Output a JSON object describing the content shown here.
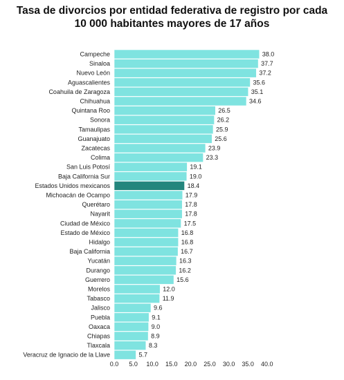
{
  "chart_data": {
    "type": "bar",
    "orientation": "horizontal",
    "title_lines": [
      "Tasa de divorcios por entidad federativa de registro por cada",
      "10 000 habitantes mayores de 17 años"
    ],
    "xlabel": "",
    "ylabel": "",
    "xlim": [
      0,
      40
    ],
    "x_ticks": [
      "0.0",
      "5.0",
      "10.0",
      "15.0",
      "20.0",
      "25.0",
      "30.0",
      "35.0",
      "40.0"
    ],
    "grid": false,
    "legend": "none",
    "categories": [
      "Campeche",
      "Sinaloa",
      "Nuevo León",
      "Aguascalientes",
      "Coahuila de Zaragoza",
      "Chihuahua",
      "Quintana Roo",
      "Sonora",
      "Tamaulipas",
      "Guanajuato",
      "Zacatecas",
      "Colima",
      "San Luis Potosí",
      "Baja California Sur",
      "Estados Unidos mexicanos",
      "Michoacán de Ocampo",
      "Querétaro",
      "Nayarit",
      "Ciudad de México",
      "Estado de México",
      "Hidalgo",
      "Baja California",
      "Yucatán",
      "Durango",
      "Guerrero",
      "Morelos",
      "Tabasco",
      "Jalisco",
      "Puebla",
      "Oaxaca",
      "Chiapas",
      "Tlaxcala",
      "Veracruz de Ignacio de la Llave"
    ],
    "values": [
      38.0,
      37.7,
      37.2,
      35.6,
      35.1,
      34.6,
      26.5,
      26.2,
      25.9,
      25.6,
      23.9,
      23.3,
      19.1,
      19.0,
      18.4,
      17.9,
      17.8,
      17.8,
      17.5,
      16.8,
      16.8,
      16.7,
      16.3,
      16.2,
      15.6,
      12.0,
      11.9,
      9.6,
      9.1,
      9.0,
      8.9,
      8.3,
      5.7
    ],
    "value_labels": [
      "38.0",
      "37.7",
      "37.2",
      "35.6",
      "35.1",
      "34.6",
      "26.5",
      "26.2",
      "25.9",
      "25.6",
      "23.9",
      "23.3",
      "19.1",
      "19.0",
      "18.4",
      "17.9",
      "17.8",
      "17.8",
      "17.5",
      "16.8",
      "16.8",
      "16.7",
      "16.3",
      "16.2",
      "15.6",
      "12.0",
      "11.9",
      "9.6",
      "9.1",
      "9.0",
      "8.9",
      "8.3",
      "5.7"
    ],
    "highlight_category": "Estados Unidos mexicanos",
    "colors": {
      "bar": "#7fe3e0",
      "highlight_bar": "#23867d",
      "bar_edge": "#ffffff"
    }
  }
}
